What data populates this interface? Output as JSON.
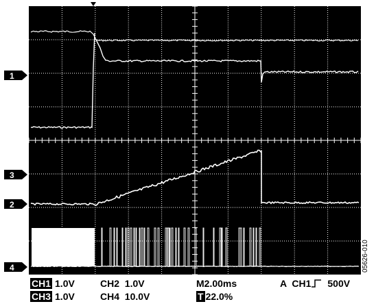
{
  "markers": [
    "1",
    "3",
    "2",
    "4"
  ],
  "readouts": {
    "ch1": {
      "label": "CH1",
      "value": "1.0V"
    },
    "ch2": "CH2  1.0V",
    "ch3": {
      "label": "CH3",
      "value": "1.0V"
    },
    "ch4": "CH4  10.0V",
    "timebase": "M2.00ms",
    "trigger_pos_icon": "T",
    "trigger_pos": "22.0%",
    "trigger": "A  CH1",
    "trigger_level": "500V"
  },
  "figure_id": "05626-010",
  "colors": {
    "screen": "#000000",
    "grid": "#ffffff",
    "trace": "#ffffff"
  }
}
